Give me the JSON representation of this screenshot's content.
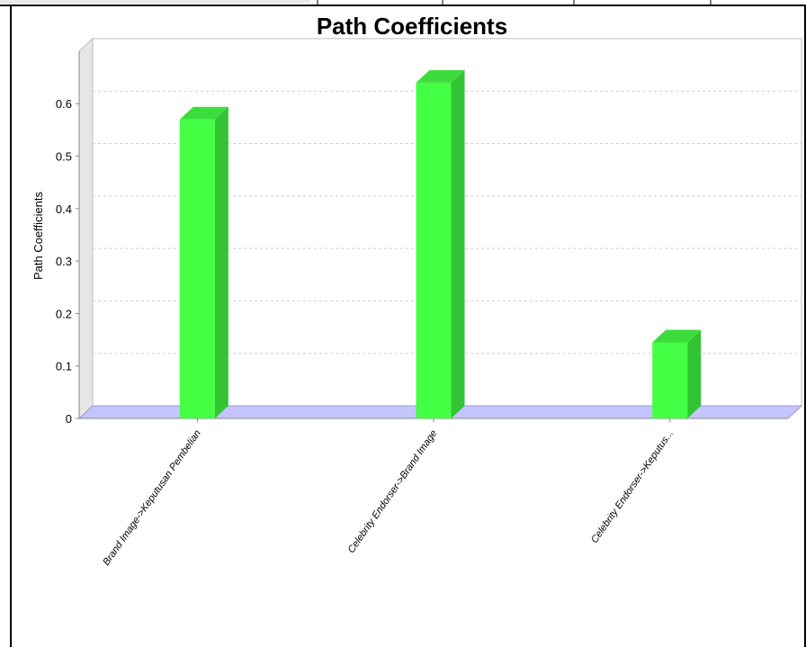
{
  "chart_data": {
    "type": "bar",
    "title": "Path Coefficients",
    "xlabel": "",
    "ylabel": "Path Coefficients",
    "categories": [
      "Brand Image->Keputusan Pembelian",
      "Celebrity Endorser->Brand Image",
      "Celebrity Endorser->Keputus..."
    ],
    "values": [
      0.57,
      0.64,
      0.145
    ],
    "ylim": [
      0,
      0.7
    ],
    "yticks": [
      "0",
      "0.1",
      "0.2",
      "0.3",
      "0.4",
      "0.5",
      "0.6"
    ],
    "grid": true,
    "legend": "none",
    "colors": {
      "bar_front": "#44ff44",
      "bar_side": "#33c433",
      "bar_top": "#3ddc3d",
      "floor": "#c4c4ff",
      "wall": "#e6e6e6",
      "grid": "#cfcfcf",
      "border": "#000000"
    }
  }
}
